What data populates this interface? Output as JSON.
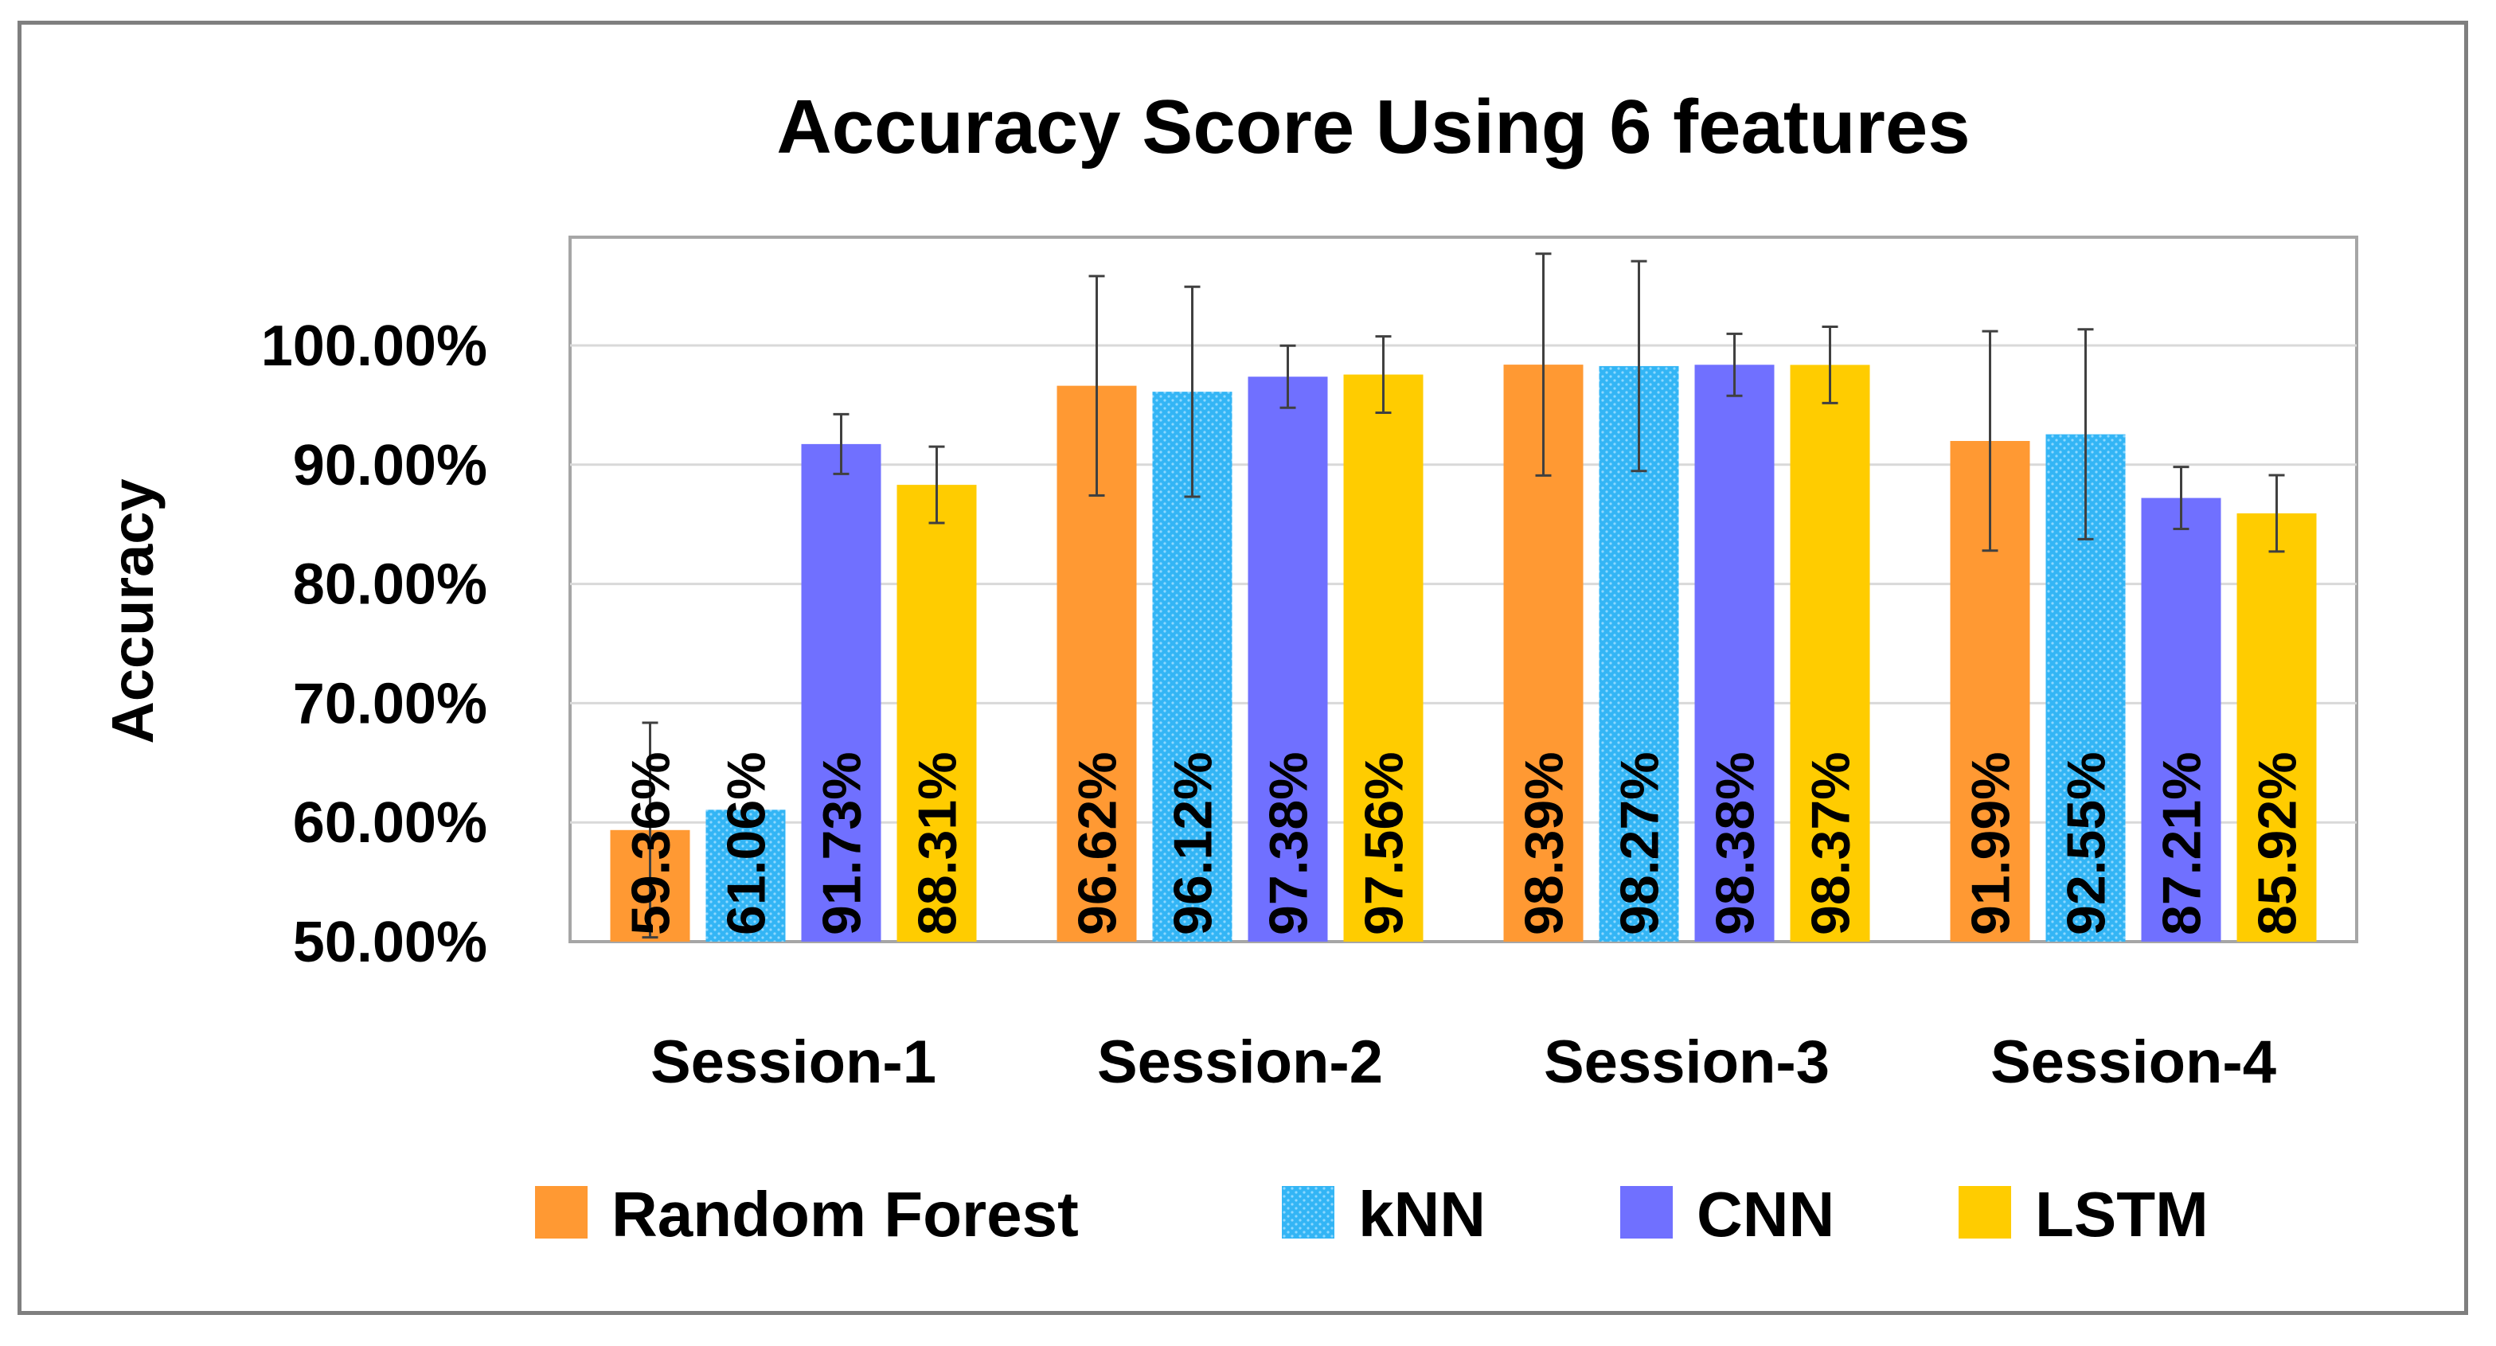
{
  "chart_data": {
    "type": "bar",
    "title": "Accuracy Score Using 6 features",
    "ylabel": "Accuracy",
    "xlabel": "",
    "ylim": [
      50,
      105
    ],
    "yticks": [
      "50.00%",
      "60.00%",
      "70.00%",
      "80.00%",
      "90.00%",
      "100.00%"
    ],
    "ytick_values": [
      50,
      60,
      70,
      80,
      90,
      100
    ],
    "categories": [
      "Session-1",
      "Session-2",
      "Session-3",
      "Session-4"
    ],
    "grid": true,
    "legend_position": "bottom",
    "series": [
      {
        "name": "Random Forest",
        "color": "#FF9933",
        "values": [
          59.36,
          96.62,
          98.39,
          91.99
        ],
        "labels": [
          "59.36%",
          "96.62%",
          "98.39%",
          "91.99%"
        ],
        "error": [
          9.0,
          9.2,
          9.3,
          9.2
        ]
      },
      {
        "name": "kNN",
        "color": "#33B5F5",
        "values": [
          61.06,
          96.12,
          98.27,
          92.55
        ],
        "labels": [
          "61.06%",
          "96.12%",
          "98.27%",
          "92.55%"
        ],
        "error": [
          0,
          8.8,
          8.8,
          8.8
        ]
      },
      {
        "name": "CNN",
        "color": "#7070FF",
        "values": [
          91.73,
          97.38,
          98.38,
          87.21
        ],
        "labels": [
          "91.73%",
          "97.38%",
          "98.38%",
          "87.21%"
        ],
        "error": [
          2.5,
          2.6,
          2.6,
          2.6
        ]
      },
      {
        "name": "LSTM",
        "color": "#FFCC00",
        "values": [
          88.31,
          97.56,
          98.37,
          85.92
        ],
        "labels": [
          "88.31%",
          "97.56%",
          "98.37%",
          "85.92%"
        ],
        "error": [
          3.2,
          3.2,
          3.2,
          3.2
        ]
      }
    ]
  }
}
